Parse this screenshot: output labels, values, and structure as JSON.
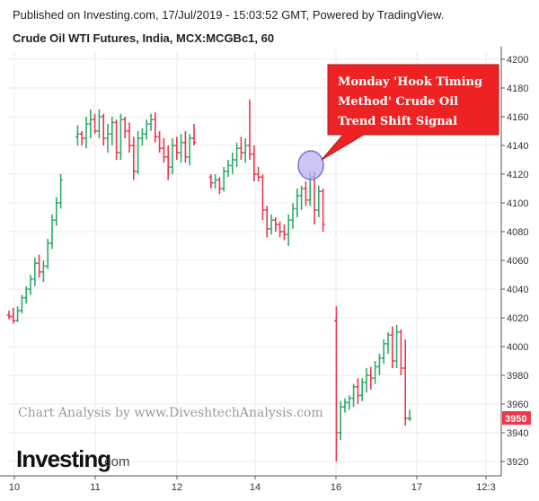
{
  "header": {
    "published": "Published on Investing.com, 17/Jul/2019 - 15:03:52 GMT, Powered by TradingView.",
    "subtitle": "Crude Oil WTI Futures, India, MCX:MCGBc1, 60"
  },
  "watermark": "Chart Analysis by www.DiveshtechAnalysis.com",
  "logo": {
    "main": "Investing",
    "suffix": ".com"
  },
  "callout": {
    "lines": [
      "Monday 'Hook Timing",
      "Method' Crude Oil",
      "Trend Shift Signal"
    ],
    "fill": "#ee2222",
    "highlight_fill": "#b9b3f2"
  },
  "colors": {
    "up": "#2eaa6b",
    "down": "#f0364d",
    "grid": "#ebebeb",
    "axis": "#555555",
    "tag": "#f0364d"
  },
  "chart_data": {
    "type": "ohlc",
    "title": "Crude Oil WTI Futures, India, MCX:MCGBc1, 60",
    "ylim": [
      3910,
      4205
    ],
    "y_ticks": [
      3920,
      3940,
      3960,
      3980,
      4000,
      4020,
      4040,
      4060,
      4080,
      4100,
      4120,
      4140,
      4160,
      4180,
      4200
    ],
    "x_tick_labels": [
      "10",
      "11",
      "12",
      "14",
      "16",
      "17",
      "12:3"
    ],
    "grid": true,
    "last_price": 3950,
    "bars": [
      [
        4022,
        4025,
        4019,
        4021
      ],
      [
        4021,
        4027,
        4016,
        4018
      ],
      [
        4018,
        4028,
        4017,
        4025
      ],
      [
        4025,
        4036,
        4023,
        4034
      ],
      [
        4034,
        4042,
        4030,
        4040
      ],
      [
        4040,
        4050,
        4036,
        4047
      ],
      [
        4047,
        4062,
        4042,
        4058
      ],
      [
        4058,
        4064,
        4048,
        4052
      ],
      [
        4052,
        4060,
        4045,
        4056
      ],
      [
        4056,
        4075,
        4054,
        4072
      ],
      [
        4072,
        4092,
        4068,
        4088
      ],
      [
        4088,
        4104,
        4084,
        4100
      ],
      [
        4100,
        4120,
        4096,
        4116
      ],
      [
        4146,
        4154,
        4140,
        4148
      ],
      [
        4148,
        4150,
        4140,
        4145
      ],
      [
        4145,
        4160,
        4138,
        4155
      ],
      [
        4155,
        4165,
        4145,
        4158
      ],
      [
        4158,
        4162,
        4148,
        4150
      ],
      [
        4150,
        4165,
        4145,
        4160
      ],
      [
        4160,
        4162,
        4140,
        4145
      ],
      [
        4145,
        4155,
        4135,
        4148
      ],
      [
        4148,
        4160,
        4140,
        4156
      ],
      [
        4156,
        4158,
        4130,
        4135
      ],
      [
        4135,
        4162,
        4130,
        4158
      ],
      [
        4158,
        4160,
        4145,
        4150
      ],
      [
        4150,
        4156,
        4135,
        4140
      ],
      [
        4140,
        4146,
        4116,
        4122
      ],
      [
        4122,
        4150,
        4120,
        4145
      ],
      [
        4145,
        4152,
        4140,
        4148
      ],
      [
        4148,
        4158,
        4144,
        4155
      ],
      [
        4155,
        4162,
        4150,
        4158
      ],
      [
        4158,
        4163,
        4142,
        4146
      ],
      [
        4146,
        4150,
        4135,
        4138
      ],
      [
        4138,
        4145,
        4128,
        4132
      ],
      [
        4132,
        4140,
        4116,
        4125
      ],
      [
        4125,
        4145,
        4120,
        4140
      ],
      [
        4140,
        4146,
        4130,
        4135
      ],
      [
        4135,
        4148,
        4128,
        4142
      ],
      [
        4142,
        4150,
        4128,
        4132
      ],
      [
        4132,
        4148,
        4126,
        4145
      ],
      [
        4145,
        4155,
        4140,
        4142
      ],
      [
        4118,
        4120,
        4110,
        4114
      ],
      [
        4114,
        4120,
        4110,
        4116
      ],
      [
        4116,
        4118,
        4106,
        4110
      ],
      [
        4110,
        4125,
        4108,
        4122
      ],
      [
        4122,
        4130,
        4118,
        4126
      ],
      [
        4126,
        4135,
        4120,
        4130
      ],
      [
        4130,
        4142,
        4125,
        4138
      ],
      [
        4138,
        4146,
        4130,
        4135
      ],
      [
        4135,
        4145,
        4128,
        4140
      ],
      [
        4140,
        4172,
        4130,
        4134
      ],
      [
        4134,
        4140,
        4115,
        4120
      ],
      [
        4120,
        4125,
        4115,
        4118
      ],
      [
        4118,
        4120,
        4088,
        4095
      ],
      [
        4095,
        4098,
        4076,
        4082
      ],
      [
        4082,
        4092,
        4078,
        4088
      ],
      [
        4088,
        4090,
        4080,
        4085
      ],
      [
        4085,
        4087,
        4076,
        4080
      ],
      [
        4080,
        4085,
        4074,
        4078
      ],
      [
        4078,
        4092,
        4070,
        4088
      ],
      [
        4088,
        4100,
        4082,
        4096
      ],
      [
        4096,
        4110,
        4090,
        4105
      ],
      [
        4105,
        4112,
        4095,
        4110
      ],
      [
        4110,
        4115,
        4098,
        4102
      ],
      [
        4102,
        4122,
        4098,
        4118
      ],
      [
        4118,
        4122,
        4085,
        4095
      ],
      [
        4095,
        4112,
        4090,
        4108
      ],
      [
        4108,
        4110,
        4080,
        4085
      ],
      [
        4018,
        4028,
        3920,
        3940
      ],
      [
        3940,
        3962,
        3935,
        3958
      ],
      [
        3958,
        3964,
        3954,
        3961
      ],
      [
        3961,
        3966,
        3956,
        3964
      ],
      [
        3964,
        3974,
        3958,
        3972
      ],
      [
        3972,
        3978,
        3960,
        3966
      ],
      [
        3966,
        3978,
        3962,
        3975
      ],
      [
        3975,
        3985,
        3968,
        3980
      ],
      [
        3980,
        3986,
        3970,
        3978
      ],
      [
        3978,
        3990,
        3974,
        3986
      ],
      [
        3986,
        3995,
        3980,
        3992
      ],
      [
        3992,
        4005,
        3988,
        4002
      ],
      [
        4002,
        4010,
        3995,
        4008
      ],
      [
        4008,
        4014,
        3985,
        3990
      ],
      [
        3990,
        4015,
        3985,
        4010
      ],
      [
        4010,
        4012,
        3980,
        3985
      ],
      [
        3985,
        4005,
        3945,
        3950
      ],
      [
        3950,
        3956,
        3948,
        3950
      ]
    ]
  }
}
